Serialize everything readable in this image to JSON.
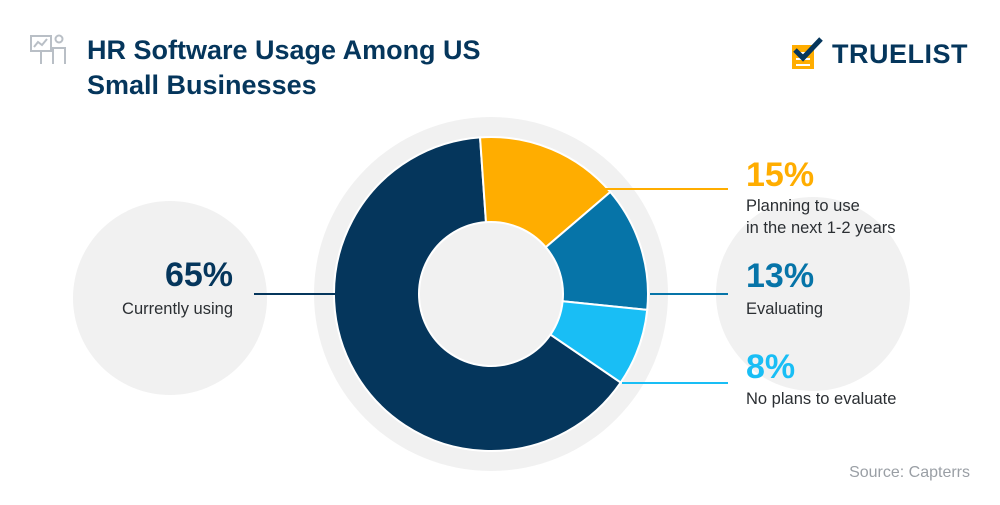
{
  "title": "HR Software Usage Among US Small Businesses",
  "brand": "TRUELIST",
  "source": "Source: Capterrs",
  "icons": {
    "title": "presentation-person-icon",
    "brand": "checklist-check-icon"
  },
  "colors": {
    "currently_using": "#05365c",
    "planning": "#ffad00",
    "evaluating": "#0674a8",
    "no_plans": "#19bef5",
    "backdrop": "#f1f1f1"
  },
  "chart_data": {
    "type": "pie",
    "title": "HR Software Usage Among US Small Businesses",
    "slices": [
      {
        "value": 65,
        "label": "65%",
        "name": "Currently using",
        "lines": [
          "Currently using"
        ],
        "color": "#05365c"
      },
      {
        "value": 15,
        "label": "15%",
        "name": "Planning to use in the next 1-2 years",
        "lines": [
          "Planning to use",
          "in the next 1-2 years"
        ],
        "color": "#ffad00"
      },
      {
        "value": 13,
        "label": "13%",
        "name": "Evaluating",
        "lines": [
          "Evaluating"
        ],
        "color": "#0674a8"
      },
      {
        "value": 8,
        "label": "8%",
        "name": "No plans to evaluate",
        "lines": [
          "No plans to evaluate"
        ],
        "color": "#19bef5"
      }
    ]
  }
}
